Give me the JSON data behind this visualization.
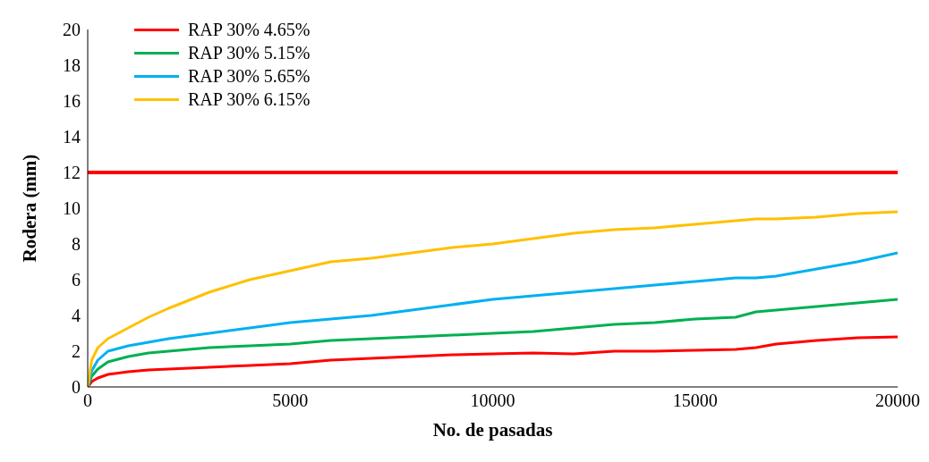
{
  "chart_data": {
    "type": "line",
    "xlabel": "No. de pasadas",
    "ylabel": "Rodera (mm)",
    "x": [
      0,
      100,
      250,
      500,
      1000,
      1500,
      2000,
      3000,
      4000,
      5000,
      6000,
      7000,
      8000,
      9000,
      10000,
      11000,
      12000,
      13000,
      14000,
      15000,
      16000,
      16500,
      17000,
      18000,
      19000,
      20000
    ],
    "series": [
      {
        "name": "RAP 30% 4.65%",
        "color": "#ff0000",
        "values": [
          0,
          0.3,
          0.5,
          0.7,
          0.85,
          0.95,
          1.0,
          1.1,
          1.2,
          1.3,
          1.5,
          1.6,
          1.7,
          1.8,
          1.85,
          1.9,
          1.85,
          2.0,
          2.0,
          2.05,
          2.1,
          2.2,
          2.4,
          2.6,
          2.75,
          2.8
        ]
      },
      {
        "name": "RAP 30% 5.15%",
        "color": "#00b050",
        "values": [
          0,
          0.6,
          1.0,
          1.4,
          1.7,
          1.9,
          2.0,
          2.2,
          2.3,
          2.4,
          2.6,
          2.7,
          2.8,
          2.9,
          3.0,
          3.1,
          3.3,
          3.5,
          3.6,
          3.8,
          3.9,
          4.2,
          4.3,
          4.5,
          4.7,
          4.9
        ]
      },
      {
        "name": "RAP 30% 5.65%",
        "color": "#00b0f0",
        "values": [
          0,
          0.9,
          1.5,
          2.0,
          2.3,
          2.5,
          2.7,
          3.0,
          3.3,
          3.6,
          3.8,
          4.0,
          4.3,
          4.6,
          4.9,
          5.1,
          5.3,
          5.5,
          5.7,
          5.9,
          6.1,
          6.1,
          6.2,
          6.6,
          7.0,
          7.5
        ]
      },
      {
        "name": "RAP 30% 6.15%",
        "color": "#ffc000",
        "values": [
          0,
          1.5,
          2.2,
          2.7,
          3.3,
          3.9,
          4.4,
          5.3,
          6.0,
          6.5,
          7.0,
          7.2,
          7.5,
          7.8,
          8.0,
          8.3,
          8.6,
          8.8,
          8.9,
          9.1,
          9.3,
          9.4,
          9.4,
          9.5,
          9.7,
          9.8
        ]
      }
    ],
    "ref_lines": [
      {
        "axis": "y",
        "value": 12,
        "color": "#ff0000"
      }
    ],
    "xlim": [
      0,
      20000
    ],
    "xticks": [
      0,
      5000,
      10000,
      15000,
      20000
    ],
    "ylim": [
      0,
      20
    ],
    "yticks": [
      0,
      2,
      4,
      6,
      8,
      10,
      12,
      14,
      16,
      18,
      20
    ],
    "grid": false,
    "legend": "top left",
    "marker": "none",
    "line_style": "solid"
  }
}
